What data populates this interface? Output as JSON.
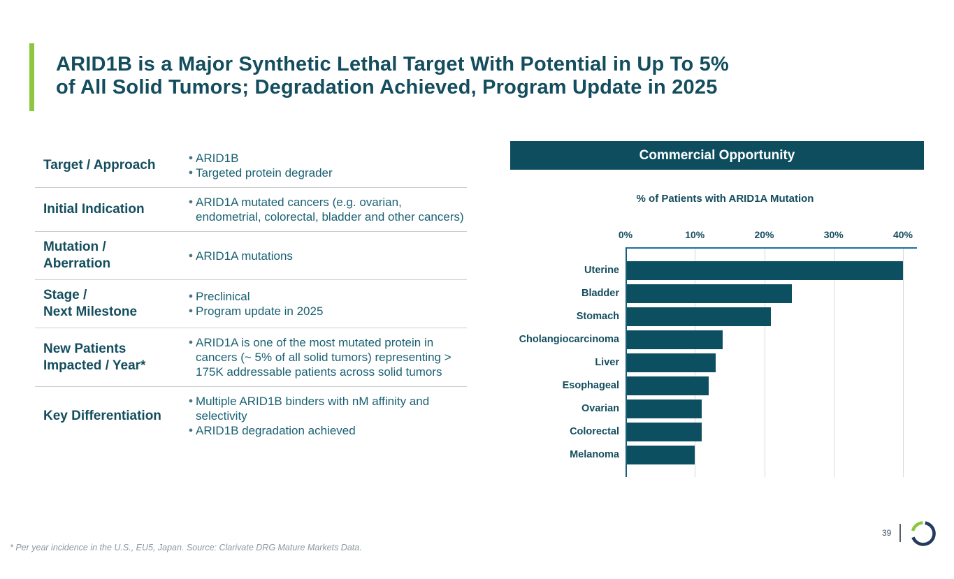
{
  "slide": {
    "title_line1": "ARID1B is a Major Synthetic Lethal Target With Potential in Up To 5%",
    "title_line2": "of All Solid Tumors; Degradation Achieved, Program Update in 2025",
    "footnote": "* Per year incidence in the U.S., EU5, Japan. Source: Clarivate DRG Mature Markets Data.",
    "page_number": "39"
  },
  "profile_table": {
    "rows": [
      {
        "label": "Target / Approach",
        "bullets": [
          "ARID1B",
          "Targeted protein degrader"
        ]
      },
      {
        "label": "Initial Indication",
        "bullets": [
          "ARID1A mutated cancers (e.g. ovarian, endometrial, colorectal, bladder and other cancers)"
        ]
      },
      {
        "label": "Mutation /\nAberration",
        "bullets": [
          "ARID1A mutations"
        ]
      },
      {
        "label": "Stage /\nNext Milestone",
        "bullets": [
          "Preclinical",
          "Program update in 2025"
        ]
      },
      {
        "label": "New Patients\nImpacted / Year*",
        "bullets": [
          "ARID1A is one of the most mutated protein in cancers (~ 5% of all solid tumors) representing > 175K addressable patients across solid tumors"
        ]
      },
      {
        "label": "Key Differentiation",
        "bullets": [
          "Multiple ARID1B binders with nM affinity and selectivity",
          "ARID1B degradation achieved"
        ]
      }
    ]
  },
  "commercial": {
    "banner_title": "Commercial Opportunity"
  },
  "chart_data": {
    "type": "bar",
    "orientation": "horizontal",
    "title": "% of Patients with ARID1A Mutation",
    "categories": [
      "Uterine",
      "Bladder",
      "Stomach",
      "Cholangiocarcinoma",
      "Liver",
      "Esophageal",
      "Ovarian",
      "Colorectal",
      "Melanoma"
    ],
    "values": [
      40,
      24,
      21,
      14,
      13,
      12,
      11,
      11,
      10
    ],
    "x_ticks": [
      {
        "label": "0%",
        "value": 0
      },
      {
        "label": "10%",
        "value": 10
      },
      {
        "label": "20%",
        "value": 20
      },
      {
        "label": "30%",
        "value": 30
      },
      {
        "label": "40%",
        "value": 40
      }
    ],
    "xlim": [
      0,
      42
    ],
    "grid": true,
    "axis_position": "top",
    "bar_color": "#0C4F60",
    "legend": "none"
  },
  "colors": {
    "accent_green": "#8DC63F",
    "brand_teal": "#144D5E",
    "banner_background": "#0D4D5E",
    "bar_fill": "#0C4F60",
    "axis_blue": "#1F6F9F",
    "body_text_teal": "#1A6173",
    "footnote_gray": "#8B969E"
  },
  "logo": {
    "icon": "ring-logo-icon",
    "ring_dark": "#263A5C",
    "ring_green": "#8DC63F"
  }
}
